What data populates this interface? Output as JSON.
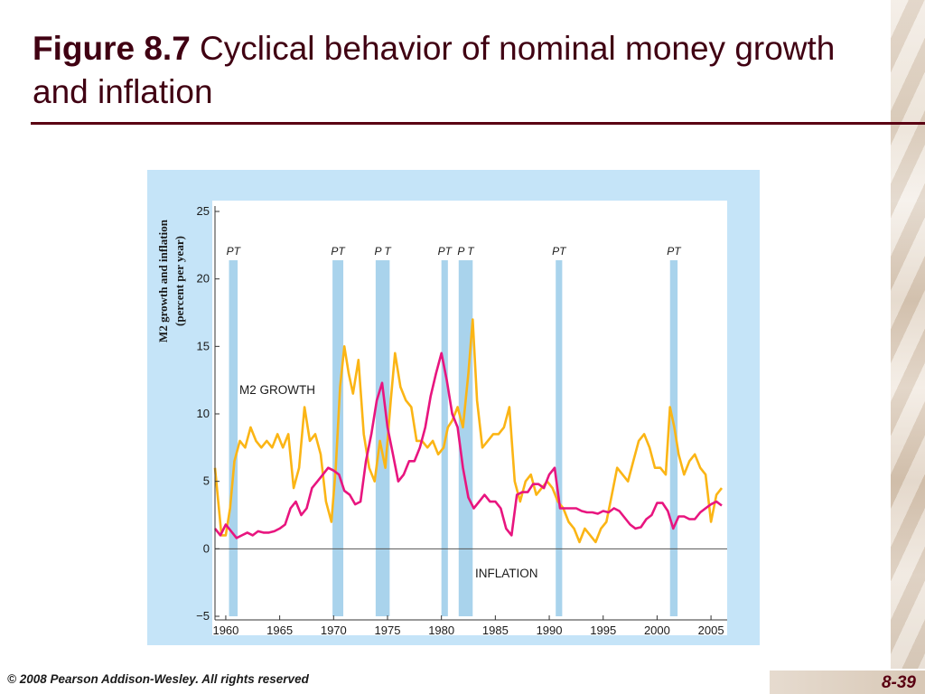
{
  "slide": {
    "title_bold": "Figure 8.7",
    "title_rest": " Cyclical behavior of nominal money growth and inflation",
    "copyright": "© 2008 Pearson Addison-Wesley. All rights reserved",
    "page_number": "8-39"
  },
  "colors": {
    "m2": "#fbb515",
    "inflation": "#e8157f",
    "recession_band": "#a9d3ec",
    "panel": "#c5e4f8",
    "title": "#400012",
    "rule": "#5a0012"
  },
  "chart_data": {
    "type": "line",
    "title": "",
    "xlabel": "",
    "ylabel": "M2 growth and inflation (percent per year)",
    "xlim": [
      1959,
      2006.5
    ],
    "ylim": [
      -5,
      25
    ],
    "x_ticks": [
      1960,
      1965,
      1970,
      1975,
      1980,
      1985,
      1990,
      1995,
      2000,
      2005
    ],
    "y_ticks": [
      -5,
      0,
      5,
      10,
      15,
      20,
      25
    ],
    "grid": false,
    "reference_line_y": 0,
    "recessions": [
      {
        "peak": 1960.3,
        "trough": 1961.1,
        "label": "PT"
      },
      {
        "peak": 1969.9,
        "trough": 1970.9,
        "label": "PT"
      },
      {
        "peak": 1973.9,
        "trough": 1975.2,
        "label": "P T"
      },
      {
        "peak": 1980.0,
        "trough": 1980.6,
        "label": "PT"
      },
      {
        "peak": 1981.6,
        "trough": 1982.9,
        "label": "P T"
      },
      {
        "peak": 1990.6,
        "trough": 1991.2,
        "label": "PT"
      },
      {
        "peak": 2001.2,
        "trough": 2001.9,
        "label": "PT"
      }
    ],
    "series": [
      {
        "name": "M2 GROWTH",
        "x": [
          1959.0,
          1959.3,
          1959.6,
          1960.0,
          1960.4,
          1960.8,
          1961.3,
          1961.8,
          1962.3,
          1962.8,
          1963.3,
          1963.8,
          1964.3,
          1964.8,
          1965.3,
          1965.8,
          1966.3,
          1966.8,
          1967.3,
          1967.8,
          1968.3,
          1968.8,
          1969.3,
          1969.8,
          1970.2,
          1970.6,
          1971.0,
          1971.4,
          1971.8,
          1972.3,
          1972.8,
          1973.3,
          1973.8,
          1974.3,
          1974.8,
          1975.3,
          1975.7,
          1976.2,
          1976.7,
          1977.2,
          1977.7,
          1978.2,
          1978.7,
          1979.2,
          1979.7,
          1980.2,
          1980.6,
          1981.0,
          1981.5,
          1982.0,
          1982.5,
          1982.9,
          1983.3,
          1983.8,
          1984.3,
          1984.8,
          1985.3,
          1985.8,
          1986.3,
          1986.8,
          1987.3,
          1987.8,
          1988.3,
          1988.8,
          1989.3,
          1989.8,
          1990.3,
          1990.8,
          1991.3,
          1991.8,
          1992.3,
          1992.8,
          1993.3,
          1993.8,
          1994.3,
          1994.8,
          1995.3,
          1995.8,
          1996.3,
          1996.8,
          1997.3,
          1997.8,
          1998.3,
          1998.8,
          1999.3,
          1999.8,
          2000.3,
          2000.8,
          2001.2,
          2001.6,
          2002.0,
          2002.5,
          2003.0,
          2003.5,
          2004.0,
          2004.5,
          2005.0,
          2005.5,
          2006.0
        ],
        "values": [
          6.0,
          3.5,
          1.0,
          1.0,
          3.0,
          6.5,
          8.0,
          7.5,
          9.0,
          8.0,
          7.5,
          8.0,
          7.5,
          8.5,
          7.5,
          8.5,
          4.5,
          6.0,
          10.5,
          8.0,
          8.5,
          7.0,
          3.5,
          2.0,
          6.0,
          12.0,
          15.0,
          13.0,
          11.5,
          14.0,
          8.5,
          6.0,
          5.0,
          8.0,
          6.0,
          11.0,
          14.5,
          12.0,
          11.0,
          10.5,
          8.0,
          8.0,
          7.5,
          8.0,
          7.0,
          7.5,
          9.0,
          9.5,
          10.5,
          9.0,
          13.0,
          17.0,
          11.0,
          7.5,
          8.0,
          8.5,
          8.5,
          9.0,
          10.5,
          5.0,
          3.5,
          5.0,
          5.5,
          4.0,
          4.5,
          5.0,
          4.5,
          3.5,
          3.0,
          2.0,
          1.5,
          0.5,
          1.5,
          1.0,
          0.5,
          1.5,
          2.0,
          4.0,
          6.0,
          5.5,
          5.0,
          6.5,
          8.0,
          8.5,
          7.5,
          6.0,
          6.0,
          5.5,
          10.5,
          9.0,
          7.0,
          5.5,
          6.5,
          7.0,
          6.0,
          5.5,
          2.0,
          4.0,
          4.5
        ]
      },
      {
        "name": "INFLATION",
        "x": [
          1959.0,
          1959.5,
          1960.0,
          1960.5,
          1961.0,
          1961.5,
          1962.0,
          1962.5,
          1963.0,
          1963.5,
          1964.0,
          1964.5,
          1965.0,
          1965.5,
          1966.0,
          1966.5,
          1967.0,
          1967.5,
          1968.0,
          1968.5,
          1969.0,
          1969.5,
          1970.0,
          1970.5,
          1971.0,
          1971.5,
          1972.0,
          1972.5,
          1973.0,
          1973.5,
          1974.0,
          1974.5,
          1975.0,
          1975.5,
          1976.0,
          1976.5,
          1977.0,
          1977.5,
          1978.0,
          1978.5,
          1979.0,
          1979.5,
          1980.0,
          1980.5,
          1981.0,
          1981.5,
          1982.0,
          1982.5,
          1983.0,
          1983.5,
          1984.0,
          1984.5,
          1985.0,
          1985.5,
          1986.0,
          1986.5,
          1987.0,
          1987.5,
          1988.0,
          1988.5,
          1989.0,
          1989.5,
          1990.0,
          1990.5,
          1991.0,
          1991.5,
          1992.0,
          1992.5,
          1993.0,
          1993.5,
          1994.0,
          1994.5,
          1995.0,
          1995.5,
          1996.0,
          1996.5,
          1997.0,
          1997.5,
          1998.0,
          1998.5,
          1999.0,
          1999.5,
          2000.0,
          2000.5,
          2001.0,
          2001.5,
          2002.0,
          2002.5,
          2003.0,
          2003.5,
          2004.0,
          2004.5,
          2005.0,
          2005.5,
          2006.0
        ],
        "values": [
          1.5,
          1.0,
          1.8,
          1.3,
          0.8,
          1.0,
          1.2,
          1.0,
          1.3,
          1.2,
          1.2,
          1.3,
          1.5,
          1.8,
          3.0,
          3.5,
          2.5,
          3.0,
          4.5,
          5.0,
          5.5,
          6.0,
          5.8,
          5.5,
          4.3,
          4.0,
          3.3,
          3.5,
          6.5,
          8.5,
          11.0,
          12.3,
          9.0,
          7.0,
          5.0,
          5.5,
          6.5,
          6.5,
          7.5,
          9.0,
          11.3,
          13.0,
          14.5,
          12.5,
          10.0,
          9.0,
          6.0,
          3.8,
          3.0,
          3.5,
          4.0,
          3.5,
          3.5,
          3.0,
          1.5,
          1.0,
          4.0,
          4.2,
          4.2,
          4.8,
          4.8,
          4.5,
          5.5,
          6.0,
          3.0,
          3.0,
          3.0,
          3.0,
          2.8,
          2.7,
          2.7,
          2.6,
          2.8,
          2.7,
          3.0,
          2.8,
          2.3,
          1.8,
          1.5,
          1.6,
          2.2,
          2.5,
          3.4,
          3.4,
          2.8,
          1.5,
          2.4,
          2.4,
          2.2,
          2.2,
          2.7,
          3.0,
          3.3,
          3.5,
          3.2
        ]
      }
    ],
    "annotations": [
      "M2 GROWTH",
      "INFLATION"
    ]
  }
}
